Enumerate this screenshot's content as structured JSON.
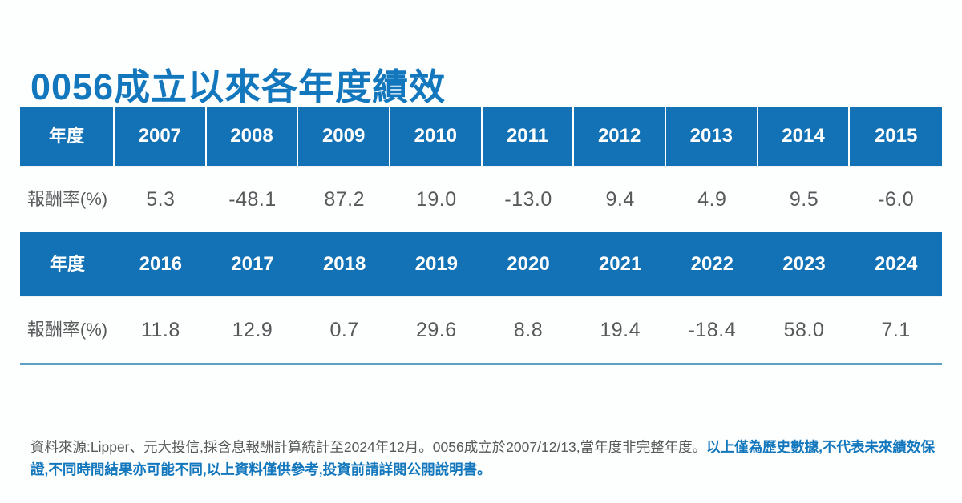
{
  "page": {
    "title": "0056成立以來各年度績效"
  },
  "colors": {
    "title_blue": "#1377bd",
    "header_bg_blue": "#1272b5",
    "header_text": "#ffffff",
    "data_text_gray": "#58595b",
    "table_bottom_line": "#5e9fc4",
    "footer_gray": "#595959",
    "footer_blue": "#1377bd",
    "background": "#fdfefe"
  },
  "table": {
    "row_label_header": "年度",
    "row_label_data": "報酬率(%)",
    "block1": {
      "years": [
        "2007",
        "2008",
        "2009",
        "2010",
        "2011",
        "2012",
        "2013",
        "2014",
        "2015"
      ],
      "returns": [
        "5.3",
        "-48.1",
        "87.2",
        "19.0",
        "-13.0",
        "9.4",
        "4.9",
        "9.5",
        "-6.0"
      ]
    },
    "block2": {
      "years": [
        "2016",
        "2017",
        "2018",
        "2019",
        "2020",
        "2021",
        "2022",
        "2023",
        "2024"
      ],
      "returns": [
        "11.8",
        "12.9",
        "0.7",
        "29.6",
        "8.8",
        "19.4",
        "-18.4",
        "58.0",
        "7.1"
      ]
    }
  },
  "footer": {
    "source_text": "資料來源:Lipper、元大投信,採含息報酬計算統計至2024年12月。0056成立於2007/12/13,當年度非完整年度。",
    "disclaimer_text": "以上僅為歷史數據,不代表未來績效保證,不同時間結果亦可能不同,以上資料僅供參考,投資前請詳閱公開說明書。"
  },
  "chart_data": {
    "type": "table",
    "title": "0056成立以來各年度績效",
    "row_headers": [
      "年度",
      "報酬率(%)"
    ],
    "years": [
      2007,
      2008,
      2009,
      2010,
      2011,
      2012,
      2013,
      2014,
      2015,
      2016,
      2017,
      2018,
      2019,
      2020,
      2021,
      2022,
      2023,
      2024
    ],
    "returns_pct": [
      5.3,
      -48.1,
      87.2,
      19.0,
      -13.0,
      9.4,
      4.9,
      9.5,
      -6.0,
      11.8,
      12.9,
      0.7,
      29.6,
      8.8,
      19.4,
      -18.4,
      58.0,
      7.1
    ]
  }
}
